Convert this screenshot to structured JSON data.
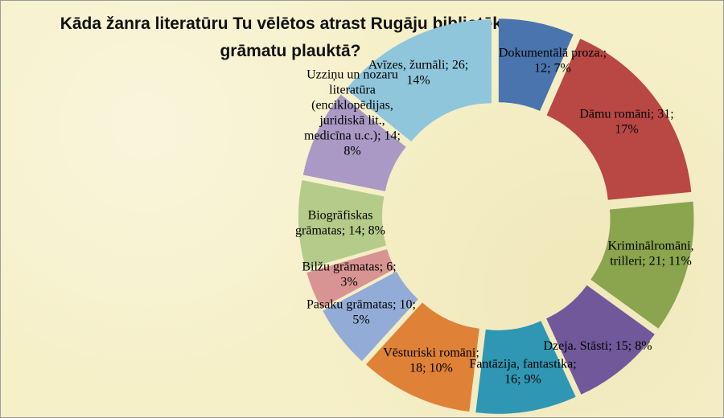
{
  "chart_data": {
    "type": "pie",
    "variant": "exploded doughnut",
    "title_lines": [
      "Kāda žanra literatūru Tu vēlētos atrast Rugāju bibliotēkas",
      "grāmatu plauktā?"
    ],
    "slices": [
      {
        "category": "Dokumentālā proza",
        "value": 12,
        "percent": 7,
        "color": "#4a74ad",
        "label_lines": [
          "Dokumentālā proza.;",
          "12; 7%"
        ]
      },
      {
        "category": "Dāmu romāni",
        "value": 31,
        "percent": 17,
        "color": "#b94744",
        "label_lines": [
          "Dāmu romāni; 31;",
          "17%"
        ]
      },
      {
        "category": "Kriminālromāni, trilleri",
        "value": 21,
        "percent": 11,
        "color": "#8aa54d",
        "label_lines": [
          "Kriminālromāni,",
          "trilleri; 21; 11%"
        ]
      },
      {
        "category": "Dzeja. Stāsti",
        "value": 15,
        "percent": 8,
        "color": "#71589a",
        "label_lines": [
          "Dzeja. Stāsti; 15; 8%"
        ]
      },
      {
        "category": "Fantāzija, fantastika",
        "value": 16,
        "percent": 9,
        "color": "#2f97b3",
        "label_lines": [
          "Fantāzija, fantastika;",
          "16; 9%"
        ]
      },
      {
        "category": "Vēsturiski romāni",
        "value": 18,
        "percent": 10,
        "color": "#df8136",
        "label_lines": [
          "Vēsturiski romāni;",
          "18; 10%"
        ]
      },
      {
        "category": "Pasaku grāmatas",
        "value": 10,
        "percent": 5,
        "color": "#93acd7",
        "label_lines": [
          "Pasaku grāmatas; 10;",
          "5%"
        ]
      },
      {
        "category": "Bilžu grāmatas",
        "value": 6,
        "percent": 3,
        "color": "#d89493",
        "label_lines": [
          "Bilžu grāmatas; 6;",
          "3%"
        ]
      },
      {
        "category": "Biogrāfiskas grāmatas",
        "value": 14,
        "percent": 8,
        "color": "#b4cb8a",
        "label_lines": [
          "Biogrāfiskas",
          "grāmatas; 14; 8%"
        ]
      },
      {
        "category": "Uzziņu un nozaru literatūra",
        "value": 14,
        "percent": 8,
        "color": "#a999c4",
        "label_lines": [
          "Uzziņu  un nozaru",
          "literatūra",
          "(enciklopēdijas,",
          "juridiskā lit.,",
          "medicīna u.c.); 14;",
          "8%"
        ]
      },
      {
        "category": "Avīzes, žurnāli",
        "value": 26,
        "percent": 14,
        "color": "#8fc6dc",
        "label_lines": [
          "Avīzes, žurnāli; 26;",
          "14%"
        ]
      }
    ],
    "legend": "none"
  }
}
